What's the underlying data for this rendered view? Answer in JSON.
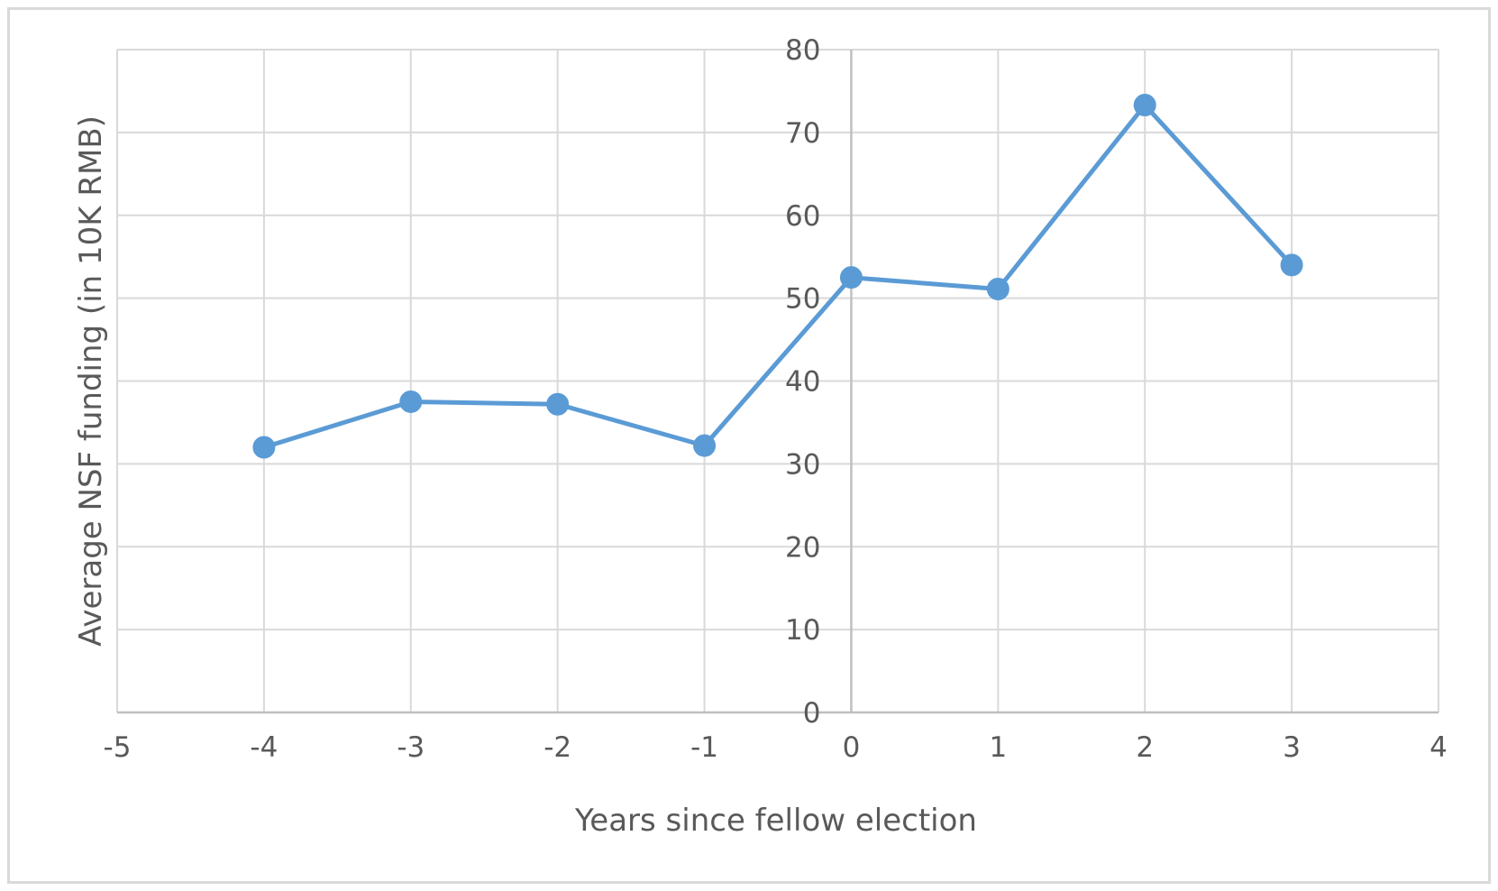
{
  "chart_data": {
    "type": "line",
    "title": "",
    "xlabel": "Years since fellow election",
    "ylabel": "Average NSF funding (in 10K RMB)",
    "xlim": [
      -5,
      4
    ],
    "ylim": [
      0,
      80
    ],
    "x_ticks": [
      -5,
      -4,
      -3,
      -2,
      -1,
      0,
      1,
      2,
      3,
      4
    ],
    "y_ticks": [
      0,
      10,
      20,
      30,
      40,
      50,
      60,
      70,
      80
    ],
    "grid": true,
    "legend": "none",
    "series": [
      {
        "color": "#5b9bd5",
        "marker": "circle",
        "x": [
          -4,
          -3,
          -2,
          -1,
          0,
          1,
          2,
          3
        ],
        "y": [
          32.0,
          37.5,
          37.2,
          32.2,
          52.5,
          51.1,
          73.3,
          54.0
        ]
      }
    ],
    "colors": {
      "grid": "#d9d9d9",
      "axis": "#bfbfbf",
      "text": "#595959",
      "border": "#d9d9d9"
    }
  }
}
